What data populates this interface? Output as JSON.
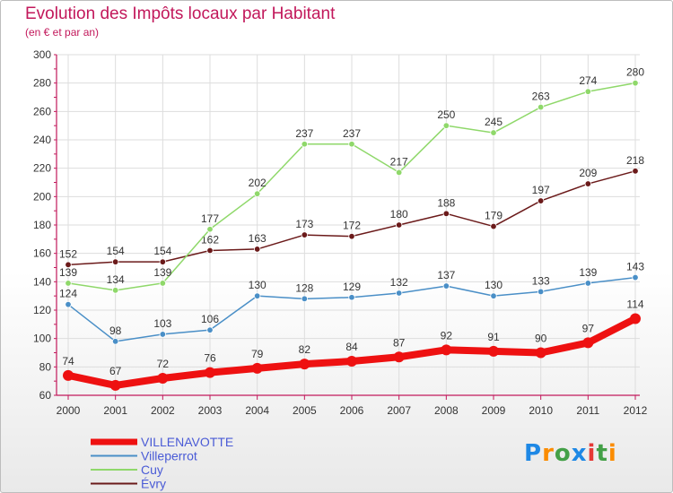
{
  "title": "Evolution des Impôts locaux par Habitant",
  "subtitle": "(en € et par an)",
  "logo": {
    "text": "Proxiti",
    "colors": [
      "#1e88e5",
      "#fb8c00",
      "#43a047",
      "#1e88e5",
      "#e53935",
      "#43a047",
      "#fb8c00"
    ]
  },
  "colors": {
    "title": "#c2185b",
    "axis": "#c2185b",
    "grid": "#dddddd",
    "label": "#333333",
    "legend_text": "#4a5bd6"
  },
  "chart_data": {
    "type": "line",
    "title": "Evolution des Impôts locaux par Habitant",
    "subtitle": "(en € et par an)",
    "x": [
      "2000",
      "2001",
      "2002",
      "2003",
      "2004",
      "2005",
      "2006",
      "2007",
      "2008",
      "2009",
      "2010",
      "2011",
      "2012"
    ],
    "ylim": [
      60,
      300
    ],
    "yticks": [
      60,
      80,
      100,
      120,
      140,
      160,
      180,
      200,
      220,
      240,
      260,
      280,
      300
    ],
    "grid": true,
    "legend_position": "bottom-left",
    "series": [
      {
        "name": "VILLENAVOTTE",
        "color": "#ee1111",
        "weight": "heavy",
        "values": [
          74,
          67,
          72,
          76,
          79,
          82,
          84,
          87,
          92,
          91,
          90,
          97,
          114
        ]
      },
      {
        "name": "Villeperrot",
        "color": "#4a8fc7",
        "weight": "thin",
        "values": [
          124,
          98,
          103,
          106,
          130,
          128,
          129,
          132,
          137,
          130,
          133,
          139,
          143
        ]
      },
      {
        "name": "Cuy",
        "color": "#8fd86a",
        "weight": "thin",
        "values": [
          139,
          134,
          139,
          177,
          202,
          237,
          237,
          217,
          250,
          245,
          263,
          274,
          280
        ]
      },
      {
        "name": "Évry",
        "color": "#6b1a1a",
        "weight": "thin",
        "values": [
          152,
          154,
          154,
          162,
          163,
          173,
          172,
          180,
          188,
          179,
          197,
          209,
          218
        ]
      }
    ]
  }
}
